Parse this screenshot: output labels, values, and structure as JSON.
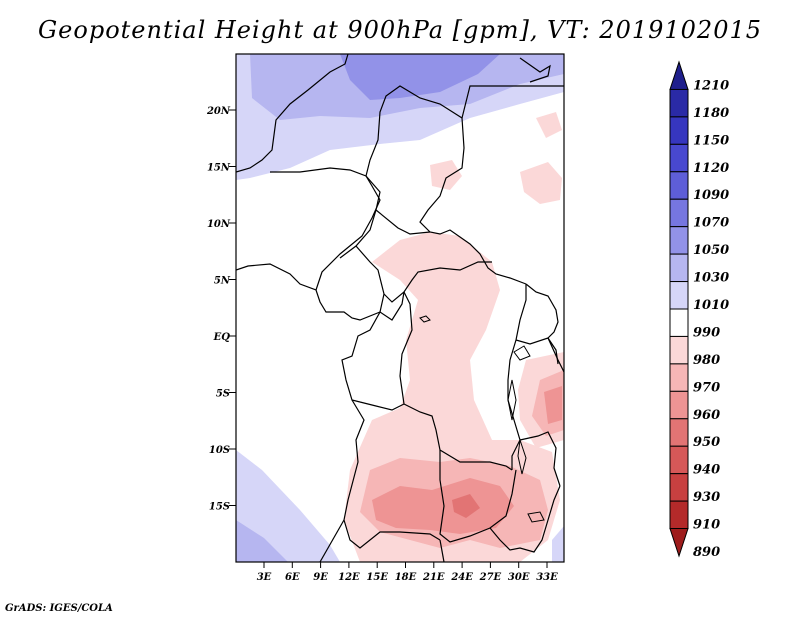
{
  "title": "Geopotential Height at 900hPa [gpm], VT: 2019102015",
  "credit": "GrADS: IGES/COLA",
  "map": {
    "lat_labels": [
      "20N",
      "15N",
      "10N",
      "5N",
      "EQ",
      "5S",
      "10S",
      "15S"
    ],
    "lon_labels": [
      "3E",
      "6E",
      "9E",
      "12E",
      "15E",
      "18E",
      "21E",
      "24E",
      "27E",
      "30E",
      "33E"
    ]
  },
  "colorbar": {
    "levels": [
      "1210",
      "1180",
      "1150",
      "1120",
      "1090",
      "1070",
      "1050",
      "1030",
      "1010",
      "990",
      "980",
      "970",
      "960",
      "950",
      "940",
      "930",
      "910",
      "890"
    ],
    "colors": [
      "#1f1f8c",
      "#2a2aa6",
      "#3636bf",
      "#4848cf",
      "#5e5ed8",
      "#7676e0",
      "#9292e8",
      "#b6b6f0",
      "#d6d6f8",
      "#ffffff",
      "#fbd8d8",
      "#f6b6b6",
      "#ee9494",
      "#e27474",
      "#d65858",
      "#c84040",
      "#b42a2a",
      "#9e1c1c"
    ]
  }
}
